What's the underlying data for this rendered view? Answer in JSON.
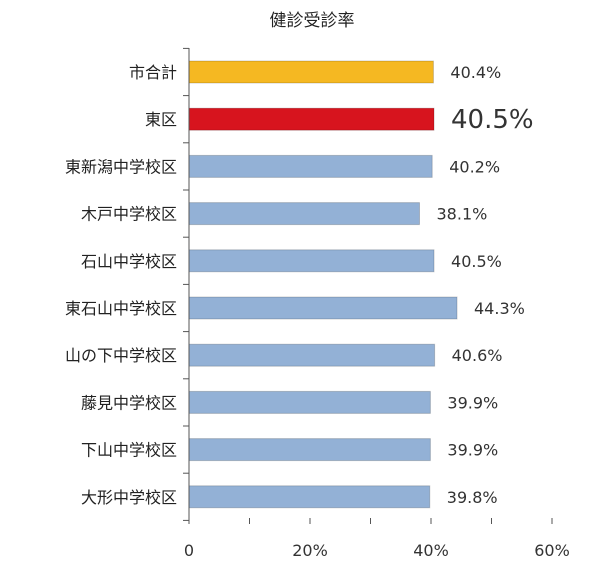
{
  "chart_data": {
    "type": "bar",
    "orientation": "horizontal",
    "title": "健診受診率",
    "categories": [
      "市合計",
      "東区",
      "東新潟中学校区",
      "木戸中学校区",
      "石山中学校区",
      "東石山中学校区",
      "山の下中学校区",
      "藤見中学校区",
      "下山中学校区",
      "大形中学校区"
    ],
    "values": [
      40.4,
      40.5,
      40.2,
      38.1,
      40.5,
      44.3,
      40.6,
      39.9,
      39.9,
      39.8
    ],
    "value_labels": [
      "40.4%",
      "40.5%",
      "40.2%",
      "38.1%",
      "40.5%",
      "44.3%",
      "40.6%",
      "39.9%",
      "39.9%",
      "39.8%"
    ],
    "bar_colors": [
      "#f5b822",
      "#d7141e",
      "#93b1d6",
      "#93b1d6",
      "#93b1d6",
      "#93b1d6",
      "#93b1d6",
      "#93b1d6",
      "#93b1d6",
      "#93b1d6"
    ],
    "highlighted_label_index": 1,
    "xlim": [
      0,
      60
    ],
    "x_ticks": [
      0,
      20,
      40,
      60
    ],
    "x_tick_labels": [
      "0",
      "20%",
      "40%",
      "60%"
    ],
    "grid": false,
    "legend": "none"
  }
}
